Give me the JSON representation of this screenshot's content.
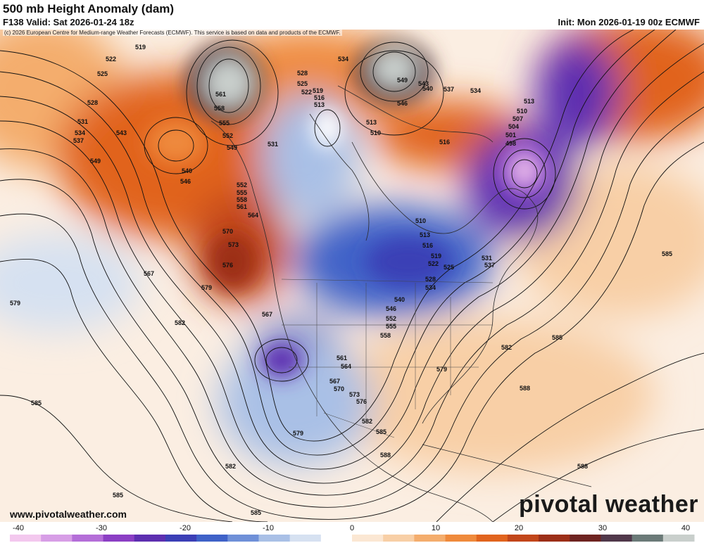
{
  "header": {
    "title": "500 mb Height Anomaly (dam)",
    "valid": "F138 Valid: Sat 2026-01-24 18z",
    "init": "Init: Mon 2026-01-19 00z ECMWF"
  },
  "copyright": "(c) 2026 European Centre for Medium-range Weather Forecasts (ECMWF). This service is based on data and products of the ECMWF.",
  "footer": {
    "website": "www.pivotalweather.com",
    "logo": "pivotal weather"
  },
  "colorbar": {
    "ticks": [
      "-40",
      "-30",
      "-20",
      "-10",
      "0",
      "10",
      "20",
      "30",
      "40"
    ],
    "colors": [
      "#f3c8ee",
      "#d79ee6",
      "#b46ed8",
      "#8b3fc4",
      "#5d2fb0",
      "#3b3fb6",
      "#3f62c8",
      "#6f90d8",
      "#a9c0e6",
      "#d6e1f1",
      "#ffffff",
      "#fbe7d3",
      "#f8cfa6",
      "#f4ad6d",
      "#ef8a3c",
      "#e1641e",
      "#c2461a",
      "#9c2f18",
      "#6e2421",
      "#50384a",
      "#6b7a78",
      "#c9cfcc"
    ]
  },
  "anomaly_regions": [
    {
      "name": "alaska-low",
      "sign": "negative",
      "value": -28
    },
    {
      "name": "hudson-bay-low",
      "sign": "negative",
      "value": -18
    },
    {
      "name": "labrador-low",
      "sign": "negative",
      "value": -40
    },
    {
      "name": "great-lakes-trough",
      "sign": "negative",
      "value": -22
    },
    {
      "name": "southwest-cutoff-low",
      "sign": "negative",
      "value": -24
    },
    {
      "name": "pacific-northwest-ridge",
      "sign": "positive",
      "value": 28
    },
    {
      "name": "north-pacific-ridge",
      "sign": "positive",
      "value": 24
    },
    {
      "name": "greenland-ridge",
      "sign": "positive",
      "value": 26
    },
    {
      "name": "north-atlantic-ridge",
      "sign": "positive",
      "value": 10
    }
  ],
  "contour_labels": [
    "519",
    "522",
    "525",
    "528",
    "531",
    "534",
    "537",
    "540",
    "543",
    "546",
    "549",
    "552",
    "555",
    "558",
    "561",
    "564",
    "567",
    "570",
    "573",
    "576",
    "579",
    "582",
    "585",
    "588",
    "498",
    "501",
    "504",
    "507",
    "510",
    "513",
    "516"
  ]
}
